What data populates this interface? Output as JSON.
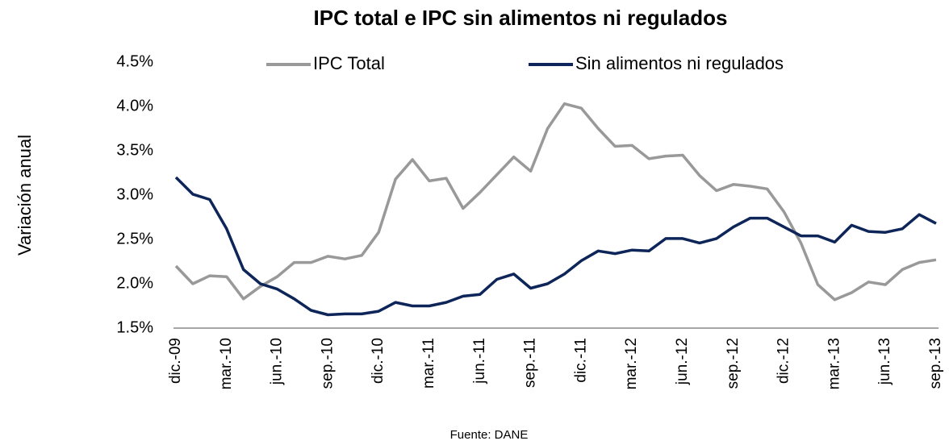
{
  "chart_data": {
    "type": "line",
    "title": "IPC total e IPC sin alimentos ni regulados",
    "y_label": "Variación anual",
    "source": "Fuente: DANE",
    "categories": [
      "dic.-09",
      null,
      null,
      "mar.-10",
      null,
      null,
      "jun.-10",
      null,
      null,
      "sep.-10",
      null,
      null,
      "dic.-10",
      null,
      null,
      "mar.-11",
      null,
      null,
      "jun.-11",
      null,
      null,
      "sep.-11",
      null,
      null,
      "dic.-11",
      null,
      null,
      "mar.-12",
      null,
      null,
      "jun.-12",
      null,
      null,
      "sep.-12",
      null,
      null,
      "dic.-12",
      null,
      null,
      "mar.-13",
      null,
      null,
      "jun.-13",
      null,
      null,
      "sep.-13"
    ],
    "series": [
      {
        "name": "IPC Total",
        "color": "#999999",
        "values": [
          2.2,
          2.0,
          2.09,
          2.08,
          1.83,
          1.97,
          2.08,
          2.24,
          2.24,
          2.31,
          2.28,
          2.32,
          2.58,
          3.18,
          3.4,
          3.16,
          3.19,
          2.85,
          3.03,
          3.23,
          3.43,
          3.27,
          3.75,
          4.03,
          3.98,
          3.75,
          3.55,
          3.56,
          3.41,
          3.44,
          3.45,
          3.22,
          3.05,
          3.12,
          3.1,
          3.07,
          2.81,
          2.46,
          1.99,
          1.82,
          1.9,
          2.02,
          1.99,
          2.16,
          2.24,
          2.27
        ]
      },
      {
        "name": "Sin alimentos ni regulados",
        "color": "#0d2558",
        "values": [
          3.2,
          3.01,
          2.95,
          2.62,
          2.16,
          2.0,
          1.94,
          1.83,
          1.7,
          1.65,
          1.66,
          1.66,
          1.69,
          1.79,
          1.75,
          1.75,
          1.79,
          1.86,
          1.88,
          2.05,
          2.11,
          1.95,
          2.0,
          2.11,
          2.26,
          2.37,
          2.34,
          2.38,
          2.37,
          2.51,
          2.51,
          2.46,
          2.51,
          2.64,
          2.74,
          2.74,
          2.64,
          2.54,
          2.54,
          2.47,
          2.66,
          2.59,
          2.58,
          2.62,
          2.78,
          2.68
        ]
      }
    ],
    "ylim": [
      1.5,
      4.5
    ],
    "yticks": [
      {
        "value": 1.5,
        "label": "1.5%"
      },
      {
        "value": 2.0,
        "label": "2.0%"
      },
      {
        "value": 2.5,
        "label": "2.5%"
      },
      {
        "value": 3.0,
        "label": "3.0%"
      },
      {
        "value": 3.5,
        "label": "3.5%"
      },
      {
        "value": 4.0,
        "label": "4.0%"
      },
      {
        "value": 4.5,
        "label": "4.5%"
      }
    ],
    "grid": false,
    "legend": "top"
  }
}
